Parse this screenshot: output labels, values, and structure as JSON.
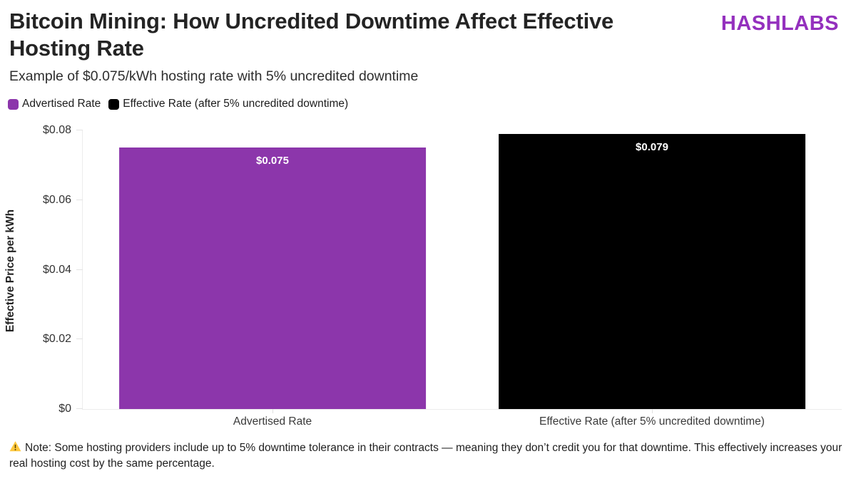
{
  "header": {
    "title": "Bitcoin Mining: How Uncredited Downtime Affect Effective Hosting Rate",
    "logo": "HASHLABS",
    "subtitle": "Example of $0.075/kWh hosting rate with 5% uncredited downtime"
  },
  "colors": {
    "bar_purple": "#8C36AB",
    "bar_black": "#000000",
    "logo_purple": "#9430BE",
    "axis_line": "#ececec",
    "tick_line": "#e3e3e3",
    "warning_yellow": "#FFC83D"
  },
  "chart_data": {
    "type": "bar",
    "title": "Bitcoin Mining: How Uncredited Downtime Affect Effective Hosting Rate",
    "subtitle": "Example of $0.075/kWh hosting rate with 5% uncredited downtime",
    "ylabel": "Effective Price per kWh",
    "xlabel": "",
    "ylim": [
      0,
      0.08
    ],
    "grid": false,
    "legend_position": "top-left",
    "yticks": [
      {
        "value": 0,
        "label": "$0"
      },
      {
        "value": 0.02,
        "label": "$0.02"
      },
      {
        "value": 0.04,
        "label": "$0.04"
      },
      {
        "value": 0.06,
        "label": "$0.06"
      },
      {
        "value": 0.08,
        "label": "$0.08"
      }
    ],
    "categories": [
      "Advertised Rate",
      "Effective Rate (after 5% uncredited downtime)"
    ],
    "values": [
      0.075,
      0.079
    ],
    "bar_labels": [
      "$0.075",
      "$0.079"
    ],
    "bar_colors": [
      "#8C36AB",
      "#000000"
    ],
    "legend": [
      {
        "label": "Advertised Rate",
        "color": "#8C36AB"
      },
      {
        "label": "Effective Rate (after 5% uncredited downtime)",
        "color": "#000000"
      }
    ]
  },
  "footnote": {
    "icon": "warning-icon",
    "text": "Note: Some hosting providers include up to 5% downtime tolerance in their contracts — meaning they don’t credit you for that downtime. This effectively increases your real hosting cost by the same percentage."
  }
}
